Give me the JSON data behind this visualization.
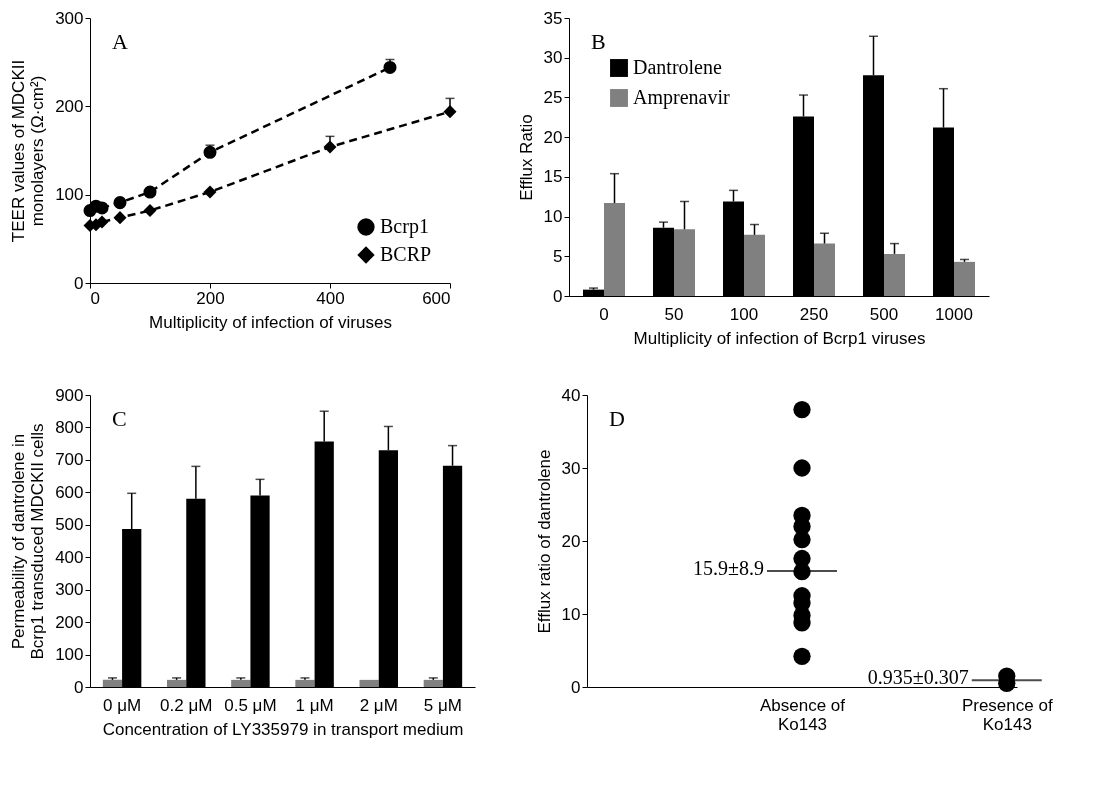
{
  "chart_data": [
    {
      "type": "line",
      "annotations": [
        "A"
      ],
      "xlabel": "Multiplicity of infection of viruses",
      "ylabel": "TEER values of MDCKII monolayers (Ω·cm²)",
      "xlim": [
        0,
        600
      ],
      "xticks": [
        0,
        200,
        400,
        600
      ],
      "ylim": [
        0,
        300
      ],
      "yticks": [
        0,
        100,
        200,
        300
      ],
      "legend": "bottom right",
      "line_style": "dashed",
      "series": [
        {
          "name": "Bcrp1",
          "color": "#000000",
          "marker": "circle",
          "x": [
            0,
            10,
            20,
            50,
            100,
            200,
            500
          ],
          "values": [
            82,
            87,
            85,
            91,
            103,
            148,
            244
          ],
          "errors": [
            null,
            null,
            null,
            null,
            4,
            8,
            9
          ]
        },
        {
          "name": "BCRP",
          "color": "#000000",
          "marker": "diamond",
          "x": [
            0,
            10,
            20,
            50,
            100,
            200,
            400,
            600
          ],
          "values": [
            65,
            66,
            69,
            74,
            82,
            103,
            154,
            194
          ],
          "errors": [
            null,
            null,
            null,
            null,
            null,
            null,
            12,
            15
          ]
        }
      ]
    },
    {
      "type": "bar",
      "annotations": [
        "B"
      ],
      "xlabel": "Multiplicity of infection of Bcrp1 viruses",
      "ylabel": "Efflux Ratio",
      "categories": [
        "0",
        "50",
        "100",
        "250",
        "500",
        "1000"
      ],
      "ylim": [
        0,
        35
      ],
      "yticks": [
        0,
        5,
        10,
        15,
        20,
        25,
        30,
        35
      ],
      "legend": "top left",
      "series": [
        {
          "name": "Dantrolene",
          "color": "#000000",
          "values": [
            0.8,
            8.6,
            11.9,
            22.6,
            27.8,
            21.2
          ],
          "errors": [
            0.2,
            0.7,
            1.4,
            2.7,
            4.9,
            4.9
          ]
        },
        {
          "name": "Amprenavir",
          "color": "#808080",
          "values": [
            11.7,
            8.4,
            7.7,
            6.6,
            5.3,
            4.3
          ],
          "errors": [
            3.7,
            3.5,
            1.3,
            1.3,
            1.3,
            0.3
          ]
        }
      ]
    },
    {
      "type": "bar",
      "annotations": [
        "C"
      ],
      "xlabel": "Concentration of LY335979 in transport medium",
      "ylabel": "Permeability of dantrolene in Bcrp1 transduced MDCKII cells",
      "categories": [
        "0 μM",
        "0.2 μM",
        "0.5 μM",
        "1 μM",
        "2 μM",
        "5 μM"
      ],
      "ylim": [
        0,
        900
      ],
      "yticks": [
        0,
        100,
        200,
        300,
        400,
        500,
        600,
        700,
        800,
        900
      ],
      "series": [
        {
          "color": "#808080",
          "values": [
            22,
            22,
            22,
            22,
            22,
            22
          ],
          "errors": [
            6,
            6,
            6,
            6,
            null,
            6
          ]
        },
        {
          "color": "#000000",
          "values": [
            487,
            580,
            590,
            757,
            730,
            682
          ],
          "errors": [
            110,
            100,
            50,
            93,
            73,
            62
          ]
        }
      ]
    },
    {
      "type": "scatter",
      "annotations": [
        "D",
        {
          "text": "15.9±8.9",
          "x": "Absence of Ko143",
          "y": 15.9
        },
        {
          "text": "0.935±0.307",
          "x": "Presence of Ko143",
          "y": 0.935
        }
      ],
      "ylabel": "Efflux ratio of dantrolene",
      "categories": [
        null,
        "Absence of Ko143",
        "Presence of Ko143"
      ],
      "ylim": [
        0,
        40
      ],
      "yticks": [
        0,
        10,
        20,
        30,
        40
      ],
      "marker": "circle",
      "series": [
        {
          "color": "#000000",
          "x": [
            "Absence of Ko143",
            "Absence of Ko143",
            "Absence of Ko143",
            "Absence of Ko143",
            "Absence of Ko143",
            "Absence of Ko143",
            "Absence of Ko143",
            "Absence of Ko143",
            "Absence of Ko143",
            "Absence of Ko143",
            "Absence of Ko143",
            "Absence of Ko143",
            "Presence of Ko143",
            "Presence of Ko143"
          ],
          "values": [
            38,
            30,
            23.5,
            22,
            20.2,
            17.6,
            15.8,
            12.5,
            11.5,
            9.8,
            8.8,
            4.2,
            1.5,
            0.5
          ]
        }
      ]
    }
  ]
}
